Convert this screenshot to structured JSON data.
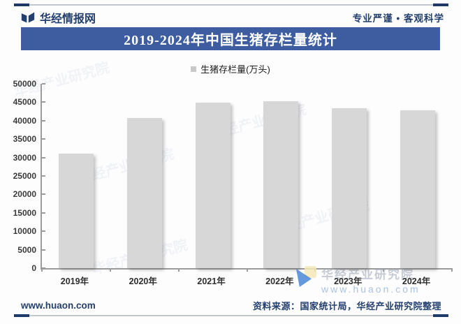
{
  "header": {
    "brand": "华经情报网",
    "slogan": "专业严谨 • 客观科学"
  },
  "banner": {
    "title": "2019-2024年中国生猪存栏量统计"
  },
  "legend": {
    "label": "生猪存栏量(万头)"
  },
  "chart_data": {
    "type": "bar",
    "title": "2019-2024年中国生猪存栏量统计",
    "series_name": "生猪存栏量(万头)",
    "categories": [
      "2019年",
      "2020年",
      "2021年",
      "2022年",
      "2023年",
      "2024年"
    ],
    "values": [
      31041,
      40650,
      44922,
      45256,
      43422,
      42743
    ],
    "xlabel": "",
    "ylabel": "",
    "ylim": [
      0,
      50000
    ],
    "ytick_step": 5000,
    "grid": false,
    "legend_position": "top-center",
    "bar_color": "#d7d7d7"
  },
  "watermark": {
    "diagonal": "华经产业研究院",
    "brand": "华经产业研究院",
    "site": "www.huaon.com"
  },
  "footer": {
    "site": "www.huaon.com",
    "source": "资料来源：国家统计局，华经产业研究院整理"
  },
  "colors": {
    "navy": "#24406e",
    "banner_bg": "#3e5da0",
    "bar": "#d7d7d7",
    "axis": "#9b9b9b"
  }
}
